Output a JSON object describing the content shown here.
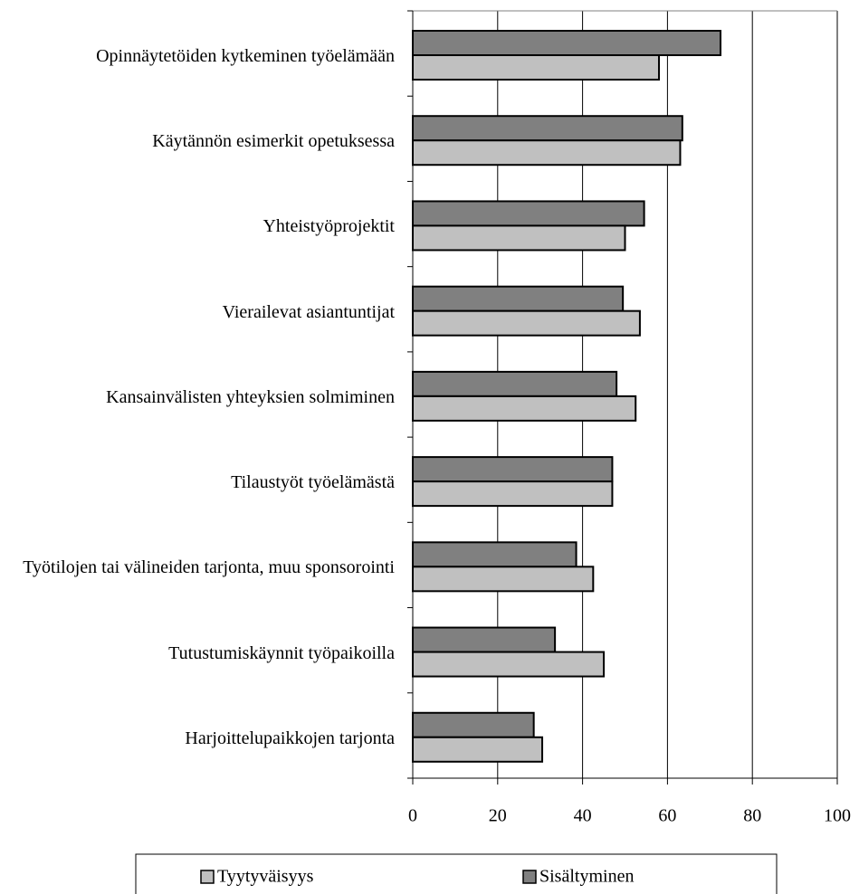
{
  "chart_data": {
    "type": "bar",
    "orientation": "horizontal",
    "categories": [
      "Opinnäytetöiden kytkeminen työelämään",
      "Käytännön esimerkit opetuksessa",
      "Yhteistyöprojektit",
      "Vierailevat asiantuntijat",
      "Kansainvälisten yhteyksien solmiminen",
      "Tilaustyöt työelämästä",
      "Työtilojen tai välineiden tarjonta, muu sponsorointi",
      "Tutustumiskäynnit työpaikoilla",
      "Harjoittelupaikkojen tarjonta"
    ],
    "series": [
      {
        "name": "Tyytyväisyys",
        "color": "#c0c0c0",
        "values": [
          58,
          63,
          50,
          53.5,
          52.5,
          47,
          42.5,
          45,
          30.5
        ]
      },
      {
        "name": "Sisältyminen",
        "color": "#808080",
        "values": [
          72.5,
          63.5,
          54.5,
          49.5,
          48,
          47,
          38.5,
          33.5,
          28.5
        ]
      }
    ],
    "xlim": [
      0,
      100
    ],
    "xticks": [
      0,
      20,
      40,
      60,
      80,
      100
    ],
    "grid": true,
    "legend": "bottom"
  }
}
